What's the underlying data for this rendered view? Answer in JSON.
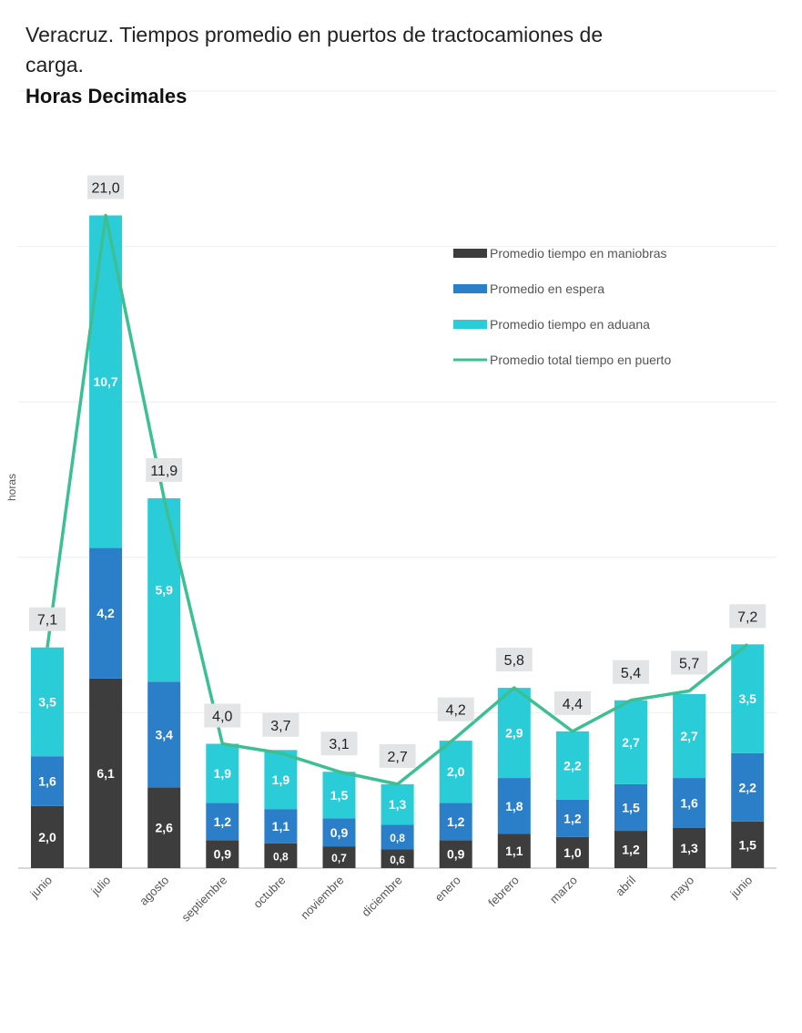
{
  "chart_data": {
    "type": "bar",
    "stacked": true,
    "title": "Veracruz. Tiempos promedio en puertos de tractocamiones de carga.",
    "subtitle": "Horas Decimales",
    "xlabel": "",
    "ylabel": "horas",
    "ylim": [
      0,
      25
    ],
    "grid": true,
    "legend_position": "top-right",
    "categories": [
      "junio",
      "julio",
      "agosto",
      "septiembre",
      "octubre",
      "noviembre",
      "diciembre",
      "enero",
      "febrero",
      "marzo",
      "abril",
      "mayo",
      "junio"
    ],
    "series": [
      {
        "name": "Promedio tiempo en maniobras",
        "type": "bar",
        "color": "#3d3d3d",
        "values": [
          2.0,
          6.1,
          2.6,
          0.9,
          0.8,
          0.7,
          0.6,
          0.9,
          1.1,
          1.0,
          1.2,
          1.3,
          1.5
        ]
      },
      {
        "name": "Promedio en espera",
        "type": "bar",
        "color": "#2a7fc8",
        "values": [
          1.6,
          4.2,
          3.4,
          1.2,
          1.1,
          0.9,
          0.8,
          1.2,
          1.8,
          1.2,
          1.5,
          1.6,
          2.2
        ]
      },
      {
        "name": "Promedio tiempo en aduana",
        "type": "bar",
        "color": "#2accd7",
        "values": [
          3.5,
          10.7,
          5.9,
          1.9,
          1.9,
          1.5,
          1.3,
          2.0,
          2.9,
          2.2,
          2.7,
          2.7,
          3.5
        ]
      },
      {
        "name": "Promedio total tiempo en puerto",
        "type": "line",
        "color": "#3dbf94",
        "values": [
          7.1,
          21.0,
          11.9,
          4.0,
          3.7,
          3.1,
          2.7,
          4.2,
          5.8,
          4.4,
          5.4,
          5.7,
          7.2
        ]
      }
    ]
  }
}
